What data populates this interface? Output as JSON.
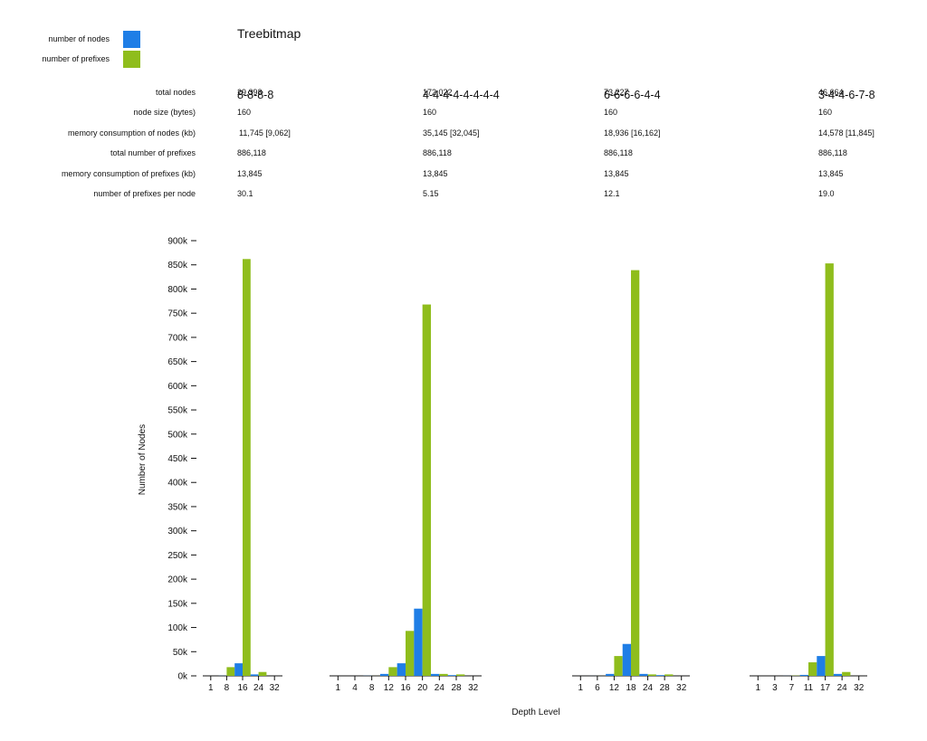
{
  "title": "Treebitmap",
  "legend": {
    "nodes": {
      "label": "number of nodes",
      "color": "#1f7ee6"
    },
    "prefixes": {
      "label": "number of prefixes",
      "color": "#8fbd1c"
    }
  },
  "configs": [
    "8-8-8-8",
    "4-4-4-4-4-4-4-4",
    "6-6-6-6-4-4",
    "3-4-4-6-7-8"
  ],
  "table": {
    "rows": [
      {
        "label": "total nodes",
        "values": [
          "29,393",
          "172,022",
          "73,227",
          "46,664"
        ]
      },
      {
        "label": "node size (bytes)",
        "values": [
          "160",
          "160",
          "160",
          "160"
        ]
      },
      {
        "label": "memory consumption of nodes (kb)",
        "values": [
          "11,745 [9,062]",
          "35,145 [32,045]",
          "18,936 [16,162]",
          "14,578 [11,845]"
        ]
      },
      {
        "label": "total number of prefixes",
        "values": [
          "886,118",
          "886,118",
          "886,118",
          "886,118"
        ]
      },
      {
        "label": "memory consumption of prefixes (kb)",
        "values": [
          "13,845",
          "13,845",
          "13,845",
          "13,845"
        ]
      },
      {
        "label": "number of prefixes per node",
        "values": [
          "30.1",
          "5.15",
          "12.1",
          "19.0"
        ]
      }
    ]
  },
  "chart_data": {
    "type": "bar",
    "ylabel": "Number of Nodes",
    "xlabel": "Depth Level",
    "ylim": [
      0,
      900000
    ],
    "yticks": [
      "0k",
      "50k",
      "100k",
      "150k",
      "200k",
      "250k",
      "300k",
      "350k",
      "400k",
      "450k",
      "500k",
      "550k",
      "600k",
      "650k",
      "700k",
      "750k",
      "800k",
      "850k",
      "900k"
    ],
    "groups": [
      {
        "config": "8-8-8-8",
        "x_ticks": [
          "1",
          "8",
          "16",
          "24",
          "32"
        ],
        "categories": [
          "1",
          "8",
          "16",
          "24",
          "32"
        ],
        "series": [
          {
            "name": "number of nodes",
            "values": [
              1,
              256,
              26000,
              3000,
              0
            ]
          },
          {
            "name": "number of prefixes",
            "values": [
              0,
              18000,
              862000,
              8000,
              0
            ]
          }
        ]
      },
      {
        "config": "4-4-4-4-4-4-4-4",
        "x_ticks": [
          "1",
          "4",
          "8",
          "12",
          "16",
          "20",
          "24",
          "28",
          "32"
        ],
        "categories": [
          "1",
          "4",
          "8",
          "12",
          "16",
          "20",
          "24",
          "28",
          "32"
        ],
        "series": [
          {
            "name": "number of nodes",
            "values": [
              1,
              16,
              256,
              4000,
              26000,
              139000,
              4000,
              1500,
              0
            ]
          },
          {
            "name": "number of prefixes",
            "values": [
              0,
              0,
              100,
              18000,
              93000,
              768000,
              4000,
              3000,
              0
            ]
          }
        ]
      },
      {
        "config": "6-6-6-6-4-4",
        "x_ticks": [
          "1",
          "6",
          "12",
          "18",
          "24",
          "28",
          "32"
        ],
        "categories": [
          "1",
          "6",
          "12",
          "18",
          "24",
          "28",
          "32"
        ],
        "series": [
          {
            "name": "number of nodes",
            "values": [
              1,
              64,
              4000,
              66000,
              4000,
              1500,
              0
            ]
          },
          {
            "name": "number of prefixes",
            "values": [
              0,
              100,
              41000,
              839000,
              3000,
              3000,
              0
            ]
          }
        ]
      },
      {
        "config": "3-4-4-6-7-8",
        "x_ticks": [
          "1",
          "3",
          "7",
          "11",
          "17",
          "24",
          "32"
        ],
        "categories": [
          "1",
          "3",
          "7",
          "11",
          "17",
          "24",
          "32"
        ],
        "series": [
          {
            "name": "number of nodes",
            "values": [
              1,
              8,
              128,
              2000,
              41000,
              4000,
              0
            ]
          },
          {
            "name": "number of prefixes",
            "values": [
              0,
              0,
              500,
              28000,
              853000,
              8000,
              0
            ]
          }
        ]
      }
    ]
  }
}
